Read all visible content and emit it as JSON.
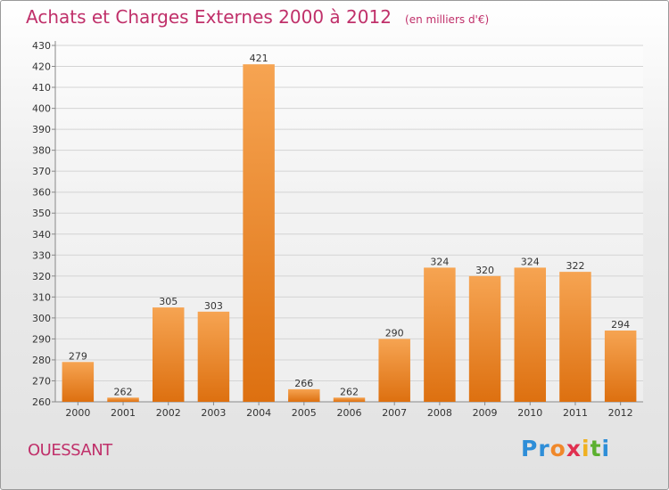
{
  "chart_data": {
    "type": "bar",
    "title": "Achats et Charges Externes 2000 à 2012",
    "unit_note": "(en milliers d'€)",
    "categories": [
      "2000",
      "2001",
      "2002",
      "2003",
      "2004",
      "2005",
      "2006",
      "2007",
      "2008",
      "2009",
      "2010",
      "2011",
      "2012"
    ],
    "values": [
      279,
      262,
      305,
      303,
      421,
      266,
      262,
      290,
      324,
      320,
      324,
      322,
      294
    ],
    "ylim": [
      260,
      430
    ],
    "yticks": [
      260,
      270,
      280,
      290,
      300,
      310,
      320,
      330,
      340,
      350,
      360,
      370,
      380,
      390,
      400,
      410,
      420,
      430
    ],
    "grid": true,
    "bar_color": "#f0882a"
  },
  "footer": {
    "commune": "OUESSANT",
    "brand_letters": [
      {
        "ch": "P",
        "color": "#2e8ed8"
      },
      {
        "ch": "r",
        "color": "#2e8ed8"
      },
      {
        "ch": "o",
        "color": "#f0882a"
      },
      {
        "ch": "x",
        "color": "#e03050"
      },
      {
        "ch": "i",
        "color": "#f0b020"
      },
      {
        "ch": "t",
        "color": "#5cb030"
      },
      {
        "ch": "i",
        "color": "#2e8ed8"
      }
    ]
  }
}
